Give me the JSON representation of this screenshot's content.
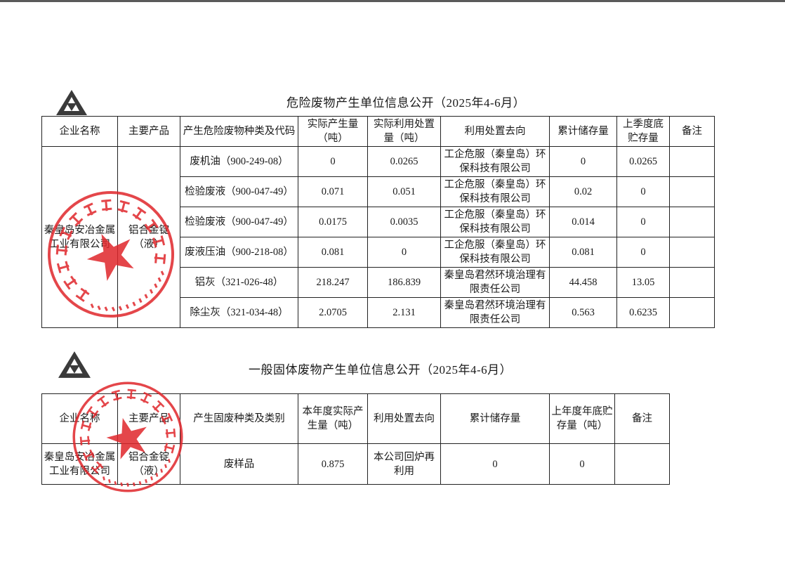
{
  "hazardous": {
    "title": "危险废物产生单位信息公开（2025年4-6月）",
    "headers": [
      "企业名称",
      "主要产品",
      "产生危险废物种类及代码",
      "实际产生量（吨）",
      "实际利用处置量（吨）",
      "利用处置去向",
      "累计储存量",
      "上季度底贮存量",
      "备注"
    ],
    "company": "秦皇岛安冶金属工业有限公司",
    "product": "铝合金锭（液）",
    "rows": [
      {
        "type": "废机油（900-249-08）",
        "produced": "0",
        "disposed": "0.0265",
        "destination": "工企危服（秦皇岛）环保科技有限公司",
        "storage": "0",
        "prev_storage": "0.0265",
        "remark": ""
      },
      {
        "type": "检验废液（900-047-49）",
        "produced": "0.071",
        "disposed": "0.051",
        "destination": "工企危服（秦皇岛）环保科技有限公司",
        "storage": "0.02",
        "prev_storage": "0",
        "remark": ""
      },
      {
        "type": "检验废液（900-047-49）",
        "produced": "0.0175",
        "disposed": "0.0035",
        "destination": "工企危服（秦皇岛）环保科技有限公司",
        "storage": "0.014",
        "prev_storage": "0",
        "remark": ""
      },
      {
        "type": "废液压油（900-218-08）",
        "produced": "0.081",
        "disposed": "0",
        "destination": "工企危服（秦皇岛）环保科技有限公司",
        "storage": "0.081",
        "prev_storage": "0",
        "remark": ""
      },
      {
        "type": "铝灰（321-026-48）",
        "produced": "218.247",
        "disposed": "186.839",
        "destination": "秦皇岛君然环境治理有限责任公司",
        "storage": "44.458",
        "prev_storage": "13.05",
        "remark": ""
      },
      {
        "type": "除尘灰（321-034-48）",
        "produced": "2.0705",
        "disposed": "2.131",
        "destination": "秦皇岛君然环境治理有限责任公司",
        "storage": "0.563",
        "prev_storage": "0.6235",
        "remark": ""
      }
    ]
  },
  "general": {
    "title": "一般固体废物产生单位信息公开（2025年4-6月）",
    "headers": [
      "企业名称",
      "主要产品",
      "产生固废种类及类别",
      "本年度实际产生量（吨）",
      "利用处置去向",
      "累计储存量",
      "上年度年底贮存量（吨）",
      "备注"
    ],
    "rows": [
      {
        "company": "秦皇岛安冶金属工业有限公司",
        "product": "铝合金锭（液）",
        "type": "废样品",
        "produced": "0.875",
        "destination": "本公司回炉再利用",
        "storage": "0",
        "prev_storage": "0",
        "remark": ""
      }
    ]
  },
  "stamp": {
    "text": "秦皇岛安冶金属工业有限公司",
    "number": "1303050913506",
    "color": "#e0262b"
  },
  "logo": {
    "icon": "triangle-logo-icon",
    "color": "#3a3a3a"
  }
}
